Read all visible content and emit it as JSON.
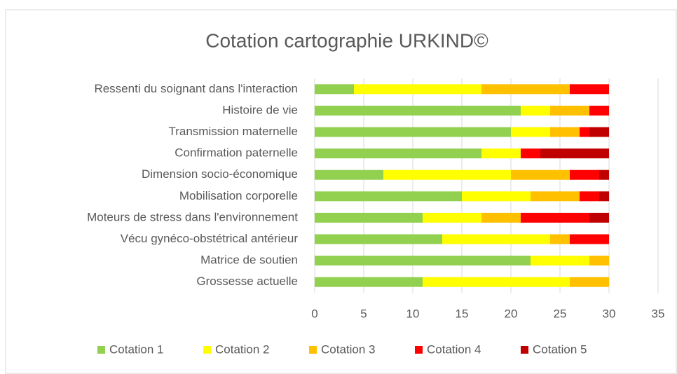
{
  "chart_data": {
    "type": "stacked_bar_horizontal",
    "title": "Cotation cartographie URKIND©",
    "categories": [
      "Ressenti du soignant dans l'interaction",
      "Histoire de vie",
      "Transmission maternelle",
      "Confirmation paternelle",
      "Dimension socio-économique",
      "Mobilisation corporelle",
      "Moteurs de stress dans l'environnement",
      "Vécu gynéco-obstétrical antérieur",
      "Matrice de soutien",
      "Grossesse actuelle"
    ],
    "series": [
      {
        "name": "Cotation 1",
        "color": "#92d050",
        "values": [
          4,
          21,
          20,
          17,
          7,
          15,
          11,
          13,
          22,
          11
        ]
      },
      {
        "name": "Cotation 2",
        "color": "#ffff00",
        "values": [
          13,
          3,
          4,
          4,
          13,
          7,
          6,
          11,
          6,
          15
        ]
      },
      {
        "name": "Cotation 3",
        "color": "#ffc000",
        "values": [
          9,
          4,
          3,
          0,
          6,
          5,
          4,
          2,
          2,
          4
        ]
      },
      {
        "name": "Cotation 4",
        "color": "#ff0000",
        "values": [
          4,
          2,
          1,
          2,
          3,
          2,
          7,
          4,
          0,
          0
        ]
      },
      {
        "name": "Cotation 5",
        "color": "#c00000",
        "values": [
          0,
          0,
          2,
          7,
          1,
          1,
          2,
          0,
          0,
          0
        ]
      }
    ],
    "xlim": [
      0,
      35
    ],
    "xticks": [
      0,
      5,
      10,
      15,
      20,
      25,
      30,
      35
    ],
    "grid": true,
    "legend": "bottom"
  }
}
